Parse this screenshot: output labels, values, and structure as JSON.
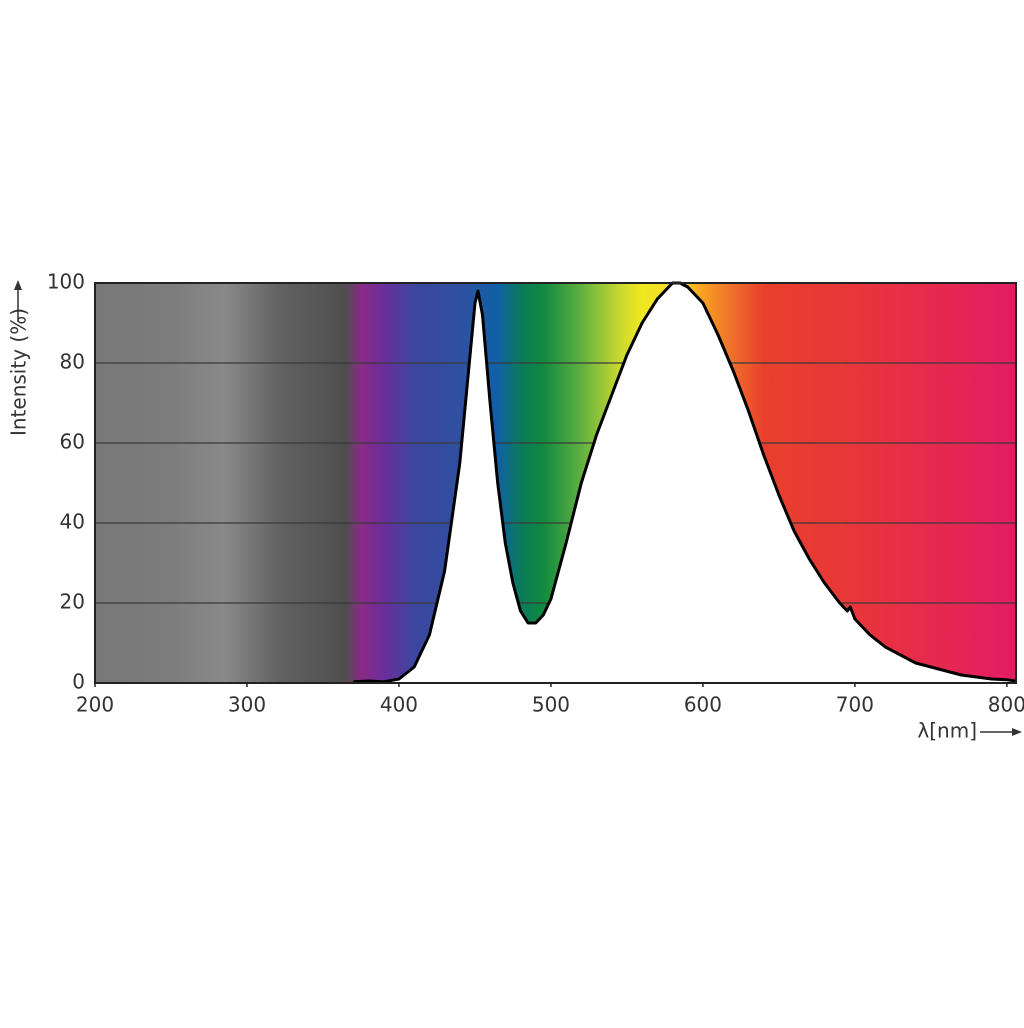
{
  "chart_data": {
    "type": "area",
    "y_label": "Intensity (%)",
    "x_label": "λ[nm]",
    "x": [
      370,
      380,
      390,
      400,
      410,
      420,
      430,
      440,
      445,
      450,
      452,
      455,
      460,
      465,
      470,
      475,
      480,
      485,
      490,
      495,
      500,
      510,
      520,
      530,
      540,
      550,
      560,
      570,
      580,
      585,
      590,
      600,
      610,
      620,
      630,
      640,
      650,
      660,
      670,
      680,
      690,
      695,
      697,
      700,
      710,
      720,
      730,
      740,
      750,
      760,
      770,
      780,
      790,
      800,
      806
    ],
    "values": [
      0.3,
      0.5,
      0.3,
      1,
      4,
      12,
      28,
      55,
      75,
      95,
      98,
      92,
      70,
      50,
      35,
      25,
      18,
      15,
      15,
      17,
      21,
      35,
      50,
      62,
      72,
      82,
      90,
      96,
      100,
      100,
      99,
      95,
      87,
      78,
      68,
      57,
      47,
      38,
      31,
      25,
      20,
      18,
      19,
      16,
      12,
      9,
      7,
      5,
      4,
      3,
      2,
      1.5,
      1,
      0.8,
      0.5
    ],
    "color": "#000000",
    "xlim": [
      200,
      806
    ],
    "ylim": [
      0,
      100
    ],
    "xticks": [
      200,
      300,
      400,
      500,
      600,
      700,
      800
    ],
    "yticks": [
      0,
      20,
      40,
      60,
      80,
      100
    ],
    "grid": true
  }
}
